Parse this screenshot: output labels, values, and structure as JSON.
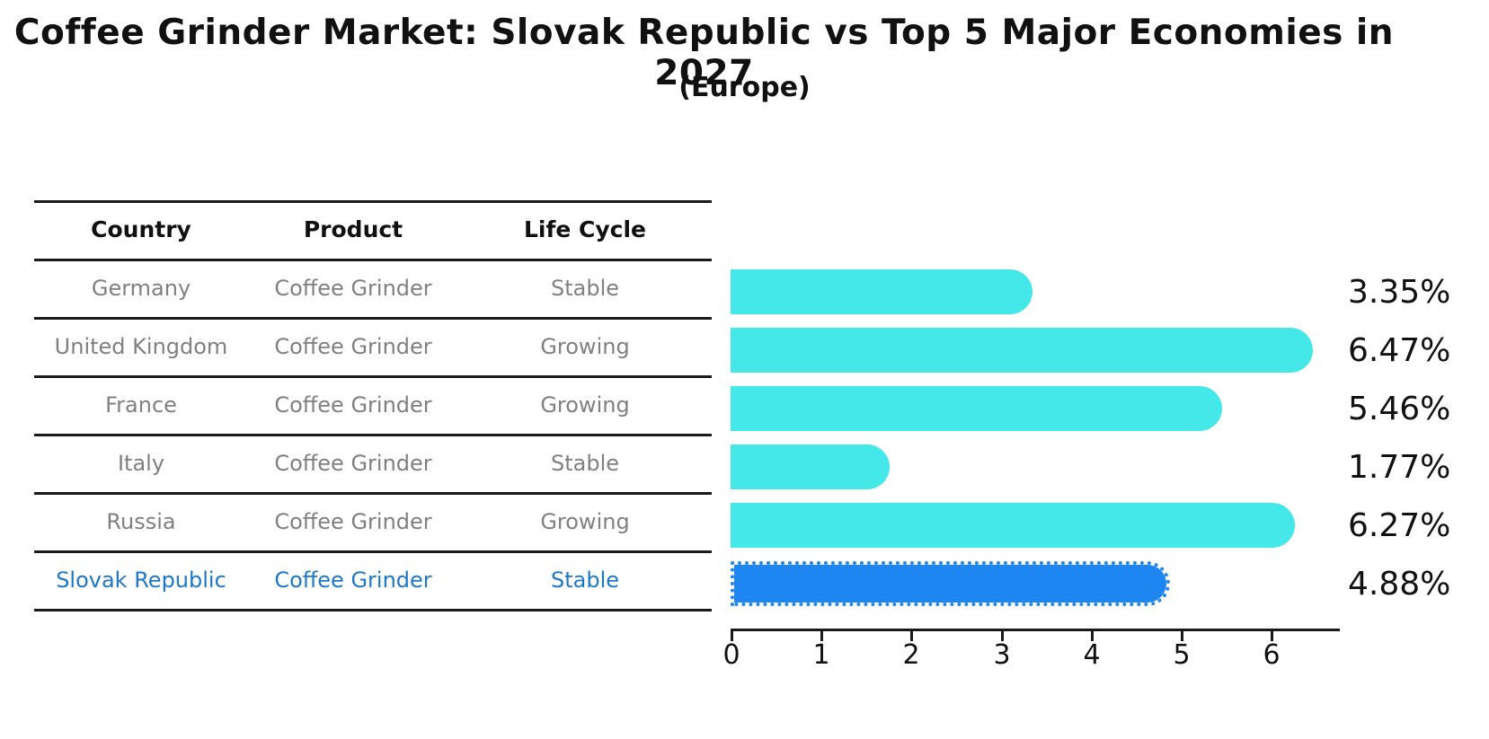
{
  "header": {
    "title": "Coffee Grinder Market: Slovak Republic vs Top 5 Major Economies in 2027",
    "subtitle": "(Europe)"
  },
  "colors": {
    "bar_cyan": "#45E8E8",
    "bar_blue": "#1E86F0",
    "bar_blue_border": "#1E86F0",
    "highlight_text": "#1E78C8",
    "row_text": "#808080",
    "axis": "#1a1a1a"
  },
  "table": {
    "headers": [
      "Country",
      "Product",
      "Life Cycle"
    ],
    "rows": [
      {
        "country": "Germany",
        "product": "Coffee Grinder",
        "life_cycle": "Stable",
        "highlighted": false
      },
      {
        "country": "United Kingdom",
        "product": "Coffee Grinder",
        "life_cycle": "Growing",
        "highlighted": false
      },
      {
        "country": "France",
        "product": "Coffee Grinder",
        "life_cycle": "Growing",
        "highlighted": false
      },
      {
        "country": "Italy",
        "product": "Coffee Grinder",
        "life_cycle": "Stable",
        "highlighted": false
      },
      {
        "country": "Russia",
        "product": "Coffee Grinder",
        "life_cycle": "Growing",
        "highlighted": false
      },
      {
        "country": "Slovak Republic",
        "product": "Coffee Grinder",
        "life_cycle": "Stable",
        "highlighted": true
      }
    ]
  },
  "chart_data": {
    "type": "bar",
    "orientation": "horizontal",
    "title": "Coffee Grinder Market: Slovak Republic vs Top 5 Major Economies in 2027",
    "subtitle": "(Europe)",
    "categories": [
      "Germany",
      "United Kingdom",
      "France",
      "Italy",
      "Russia",
      "Slovak Republic"
    ],
    "values": [
      3.35,
      6.47,
      5.46,
      1.77,
      6.27,
      4.88
    ],
    "value_labels": [
      "3.35%",
      "6.47%",
      "5.46%",
      "1.77%",
      "6.27%",
      "4.88%"
    ],
    "ticks": [
      "0",
      "1",
      "2",
      "3",
      "4",
      "5",
      "6"
    ],
    "xlim": [
      0,
      6.78
    ],
    "grid": false,
    "legend": false,
    "highlight_index": 5,
    "bar_color": "#45E8E8",
    "highlight_color": "#1E86F0"
  }
}
